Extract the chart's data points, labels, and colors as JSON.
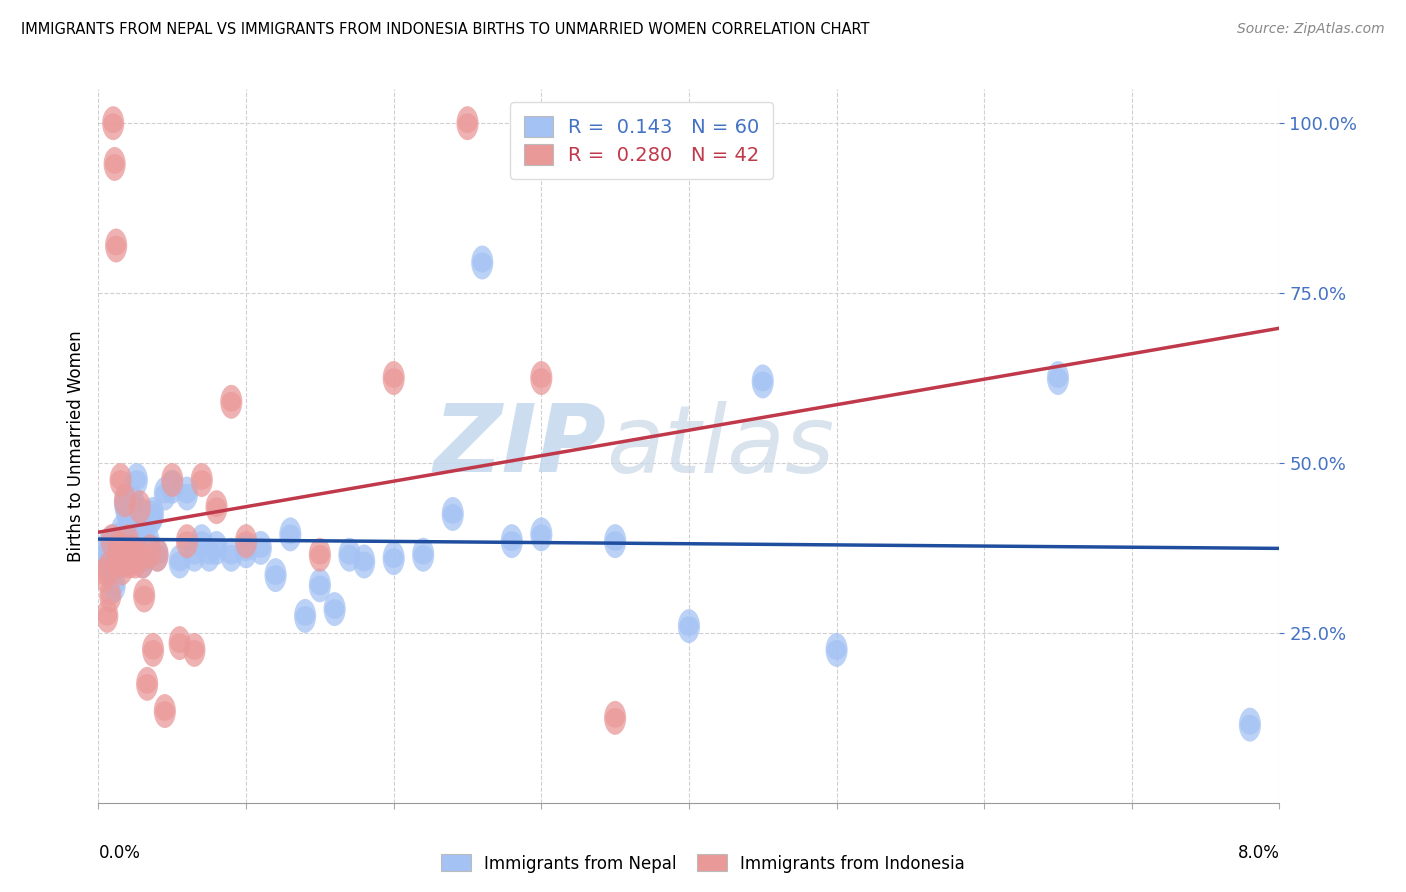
{
  "title": "IMMIGRANTS FROM NEPAL VS IMMIGRANTS FROM INDONESIA BIRTHS TO UNMARRIED WOMEN CORRELATION CHART",
  "source": "Source: ZipAtlas.com",
  "ylabel": "Births to Unmarried Women",
  "xlim": [
    0.0,
    8.0
  ],
  "ylim": [
    0.0,
    105.0
  ],
  "yticks": [
    25.0,
    50.0,
    75.0,
    100.0
  ],
  "nepal_color": "#a4c2f4",
  "indonesia_color": "#ea9999",
  "nepal_line_color": "#1f4e9e",
  "indonesia_line_color": "#c0394b",
  "watermark_color": "#dce8f5",
  "background_color": "#ffffff",
  "grid_color": "#d0d0d0",
  "nepal_scatter": [
    [
      0.05,
      36.0
    ],
    [
      0.07,
      38.0
    ],
    [
      0.08,
      36.5
    ],
    [
      0.09,
      35.0
    ],
    [
      0.1,
      38.5
    ],
    [
      0.11,
      32.0
    ],
    [
      0.12,
      37.0
    ],
    [
      0.13,
      35.5
    ],
    [
      0.14,
      36.5
    ],
    [
      0.15,
      36.0
    ],
    [
      0.16,
      40.0
    ],
    [
      0.17,
      36.5
    ],
    [
      0.18,
      44.0
    ],
    [
      0.19,
      43.0
    ],
    [
      0.2,
      36.5
    ],
    [
      0.21,
      41.5
    ],
    [
      0.22,
      41.0
    ],
    [
      0.23,
      37.5
    ],
    [
      0.24,
      44.0
    ],
    [
      0.26,
      47.5
    ],
    [
      0.27,
      38.5
    ],
    [
      0.28,
      36.5
    ],
    [
      0.3,
      35.5
    ],
    [
      0.31,
      38.5
    ],
    [
      0.32,
      37.0
    ],
    [
      0.33,
      36.5
    ],
    [
      0.34,
      38.5
    ],
    [
      0.36,
      42.0
    ],
    [
      0.37,
      42.5
    ],
    [
      0.4,
      36.5
    ],
    [
      0.45,
      45.5
    ],
    [
      0.5,
      46.5
    ],
    [
      0.55,
      35.5
    ],
    [
      0.6,
      45.5
    ],
    [
      0.65,
      36.5
    ],
    [
      0.7,
      38.5
    ],
    [
      0.75,
      36.5
    ],
    [
      0.8,
      37.5
    ],
    [
      0.9,
      36.5
    ],
    [
      1.0,
      37.0
    ],
    [
      1.1,
      37.5
    ],
    [
      1.2,
      33.5
    ],
    [
      1.3,
      39.5
    ],
    [
      1.4,
      27.5
    ],
    [
      1.5,
      32.0
    ],
    [
      1.6,
      28.5
    ],
    [
      1.7,
      36.5
    ],
    [
      1.8,
      35.5
    ],
    [
      2.0,
      36.0
    ],
    [
      2.2,
      36.5
    ],
    [
      2.4,
      42.5
    ],
    [
      2.6,
      79.5
    ],
    [
      2.8,
      38.5
    ],
    [
      3.0,
      39.5
    ],
    [
      3.5,
      38.5
    ],
    [
      4.0,
      26.0
    ],
    [
      4.5,
      62.0
    ],
    [
      5.0,
      22.5
    ],
    [
      6.5,
      62.5
    ],
    [
      7.8,
      11.5
    ]
  ],
  "indonesia_scatter": [
    [
      0.04,
      33.5
    ],
    [
      0.06,
      27.5
    ],
    [
      0.07,
      34.5
    ],
    [
      0.08,
      30.5
    ],
    [
      0.09,
      38.5
    ],
    [
      0.1,
      100.0
    ],
    [
      0.11,
      94.0
    ],
    [
      0.12,
      82.0
    ],
    [
      0.13,
      35.5
    ],
    [
      0.14,
      37.5
    ],
    [
      0.15,
      47.5
    ],
    [
      0.16,
      34.5
    ],
    [
      0.17,
      36.5
    ],
    [
      0.18,
      44.5
    ],
    [
      0.19,
      36.5
    ],
    [
      0.2,
      38.5
    ],
    [
      0.21,
      35.5
    ],
    [
      0.22,
      37.0
    ],
    [
      0.23,
      36.0
    ],
    [
      0.25,
      35.5
    ],
    [
      0.27,
      36.5
    ],
    [
      0.28,
      43.5
    ],
    [
      0.3,
      35.5
    ],
    [
      0.31,
      30.5
    ],
    [
      0.33,
      17.5
    ],
    [
      0.35,
      37.0
    ],
    [
      0.37,
      22.5
    ],
    [
      0.4,
      36.5
    ],
    [
      0.45,
      13.5
    ],
    [
      0.5,
      47.5
    ],
    [
      0.55,
      23.5
    ],
    [
      0.6,
      38.5
    ],
    [
      0.65,
      22.5
    ],
    [
      0.7,
      47.5
    ],
    [
      0.8,
      43.5
    ],
    [
      0.9,
      59.0
    ],
    [
      1.0,
      38.5
    ],
    [
      1.5,
      36.5
    ],
    [
      2.0,
      62.5
    ],
    [
      2.5,
      100.0
    ],
    [
      3.0,
      62.5
    ],
    [
      3.5,
      12.5
    ]
  ]
}
